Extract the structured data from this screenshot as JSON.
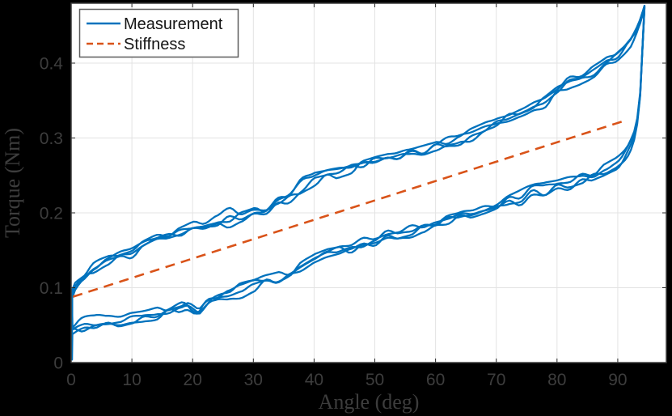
{
  "figure": {
    "background": "#000000",
    "plot_background": "#ffffff"
  },
  "colors": {
    "axis_text": "#3d3d3d",
    "grid": "#e3e3e3",
    "axis_box": "#3f3f3f",
    "tick": "#262626",
    "legend_border": "#5c5c5c",
    "legend_background": "#ffffff",
    "legend_text": "#151515",
    "measurement_blue": "#0072BD",
    "stiffness_orange": "#D95319"
  },
  "chart_data": {
    "type": "line",
    "title": "",
    "xlabel": "Angle (deg)",
    "ylabel": "Torque (Nm)",
    "xlim": [
      0,
      98
    ],
    "ylim": [
      0,
      0.48
    ],
    "xticks": [
      0,
      10,
      20,
      30,
      40,
      50,
      60,
      70,
      80,
      90
    ],
    "xtick_labels": [
      "0",
      "10",
      "20",
      "30",
      "40",
      "50",
      "60",
      "70",
      "80",
      "90"
    ],
    "yticks": [
      0,
      0.1,
      0.2,
      0.3,
      0.4
    ],
    "ytick_labels": [
      "0",
      "0.1",
      "0.2",
      "0.3",
      "0.4"
    ],
    "grid": true,
    "legend": {
      "position": "top-left",
      "entries": [
        {
          "label": "Measurement",
          "color": "#0072BD",
          "style": "solid"
        },
        {
          "label": "Stiffness",
          "color": "#D95319",
          "style": "dashed"
        }
      ]
    },
    "series": [
      {
        "name": "Measurement",
        "kind": "hysteresis-loops",
        "color": "#0072BD",
        "line_width": 2.3,
        "cycles": 4,
        "theta_start": 0.15,
        "theta_peak": 94.4,
        "theta_join": 93.7,
        "sample_step": 0.5,
        "noise": {
          "fine_amp": 0.006,
          "fine_period": 2,
          "coarse_amp": 0.0085,
          "coarse_period": 13,
          "seeds": [
            1,
            2,
            3,
            4
          ]
        },
        "upper_anchors": [
          [
            0,
            0.09
          ],
          [
            0.5,
            0.104
          ],
          [
            1.5,
            0.118
          ],
          [
            3,
            0.128
          ],
          [
            5,
            0.136
          ],
          [
            8,
            0.145
          ],
          [
            10,
            0.152
          ],
          [
            13,
            0.163
          ],
          [
            15,
            0.169
          ],
          [
            18,
            0.175
          ],
          [
            20,
            0.179
          ],
          [
            23,
            0.186
          ],
          [
            25,
            0.191
          ],
          [
            28,
            0.196
          ],
          [
            30,
            0.2
          ],
          [
            33,
            0.208
          ],
          [
            35,
            0.216
          ],
          [
            38,
            0.233
          ],
          [
            40,
            0.245
          ],
          [
            43,
            0.252
          ],
          [
            45,
            0.256
          ],
          [
            48,
            0.262
          ],
          [
            50,
            0.266
          ],
          [
            53,
            0.271
          ],
          [
            55,
            0.277
          ],
          [
            58,
            0.282
          ],
          [
            60,
            0.287
          ],
          [
            63,
            0.295
          ],
          [
            65,
            0.302
          ],
          [
            68,
            0.313
          ],
          [
            70,
            0.322
          ],
          [
            73,
            0.332
          ],
          [
            75,
            0.339
          ],
          [
            78,
            0.352
          ],
          [
            80,
            0.364
          ],
          [
            83,
            0.377
          ],
          [
            85,
            0.386
          ],
          [
            87,
            0.397
          ],
          [
            89,
            0.409
          ],
          [
            90,
            0.416
          ],
          [
            91,
            0.424
          ],
          [
            92,
            0.433
          ],
          [
            93,
            0.445
          ],
          [
            93.8,
            0.459
          ],
          [
            94.4,
            0.476
          ]
        ],
        "lower_anchors": [
          [
            0,
            0.04
          ],
          [
            1,
            0.045
          ],
          [
            3,
            0.051
          ],
          [
            5,
            0.055
          ],
          [
            8,
            0.058
          ],
          [
            10,
            0.061
          ],
          [
            13,
            0.066
          ],
          [
            15,
            0.07
          ],
          [
            17,
            0.075
          ],
          [
            19,
            0.079
          ],
          [
            21,
            0.067
          ],
          [
            23,
            0.085
          ],
          [
            25,
            0.091
          ],
          [
            28,
            0.098
          ],
          [
            30,
            0.103
          ],
          [
            33,
            0.111
          ],
          [
            35,
            0.117
          ],
          [
            38,
            0.13
          ],
          [
            40,
            0.141
          ],
          [
            43,
            0.149
          ],
          [
            45,
            0.154
          ],
          [
            48,
            0.16
          ],
          [
            50,
            0.165
          ],
          [
            53,
            0.172
          ],
          [
            55,
            0.177
          ],
          [
            58,
            0.184
          ],
          [
            60,
            0.189
          ],
          [
            63,
            0.197
          ],
          [
            65,
            0.203
          ],
          [
            68,
            0.207
          ],
          [
            70,
            0.211
          ],
          [
            73,
            0.219
          ],
          [
            75,
            0.225
          ],
          [
            78,
            0.231
          ],
          [
            80,
            0.236
          ],
          [
            83,
            0.242
          ],
          [
            85,
            0.247
          ],
          [
            88,
            0.256
          ],
          [
            90,
            0.265
          ],
          [
            91,
            0.274
          ],
          [
            92,
            0.288
          ],
          [
            92.8,
            0.305
          ],
          [
            93.4,
            0.33
          ],
          [
            93.7,
            0.358
          ]
        ]
      },
      {
        "name": "Stiffness",
        "kind": "straight-line",
        "color": "#D95319",
        "line_width": 2.6,
        "dash": [
          12,
          8
        ],
        "x": [
          0.3,
          91.5
        ],
        "y": [
          0.088,
          0.324
        ]
      }
    ]
  }
}
